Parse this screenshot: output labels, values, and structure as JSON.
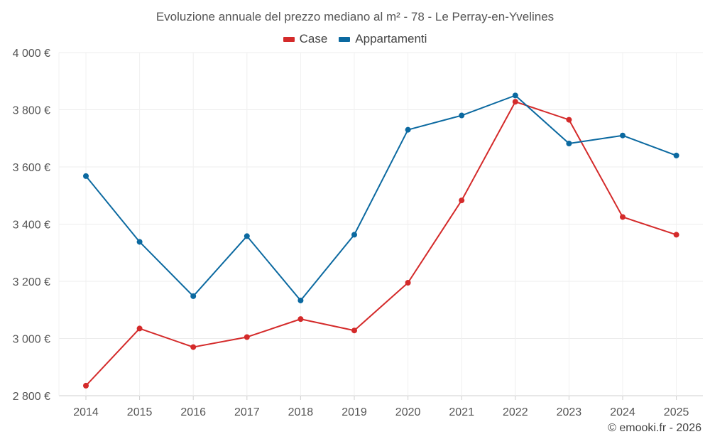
{
  "chart_data": {
    "type": "line",
    "title": "Evoluzione annuale del prezzo mediano al m² - 78 - Le Perray-en-Yvelines",
    "xlabel": "",
    "ylabel": "",
    "categories": [
      "2014",
      "2015",
      "2016",
      "2017",
      "2018",
      "2019",
      "2020",
      "2021",
      "2022",
      "2023",
      "2024",
      "2025"
    ],
    "ylim": [
      2800,
      4000
    ],
    "yticks": [
      2800,
      3000,
      3200,
      3400,
      3600,
      3800,
      4000
    ],
    "ytick_labels": [
      "2 800 €",
      "3 000 €",
      "3 200 €",
      "3 400 €",
      "3 600 €",
      "3 800 €",
      "4 000 €"
    ],
    "grid": true,
    "legend_position": "top-center",
    "series": [
      {
        "name": "Case",
        "color": "#d42a2a",
        "values": [
          2835,
          3035,
          2970,
          3005,
          3068,
          3028,
          3195,
          3483,
          3828,
          3765,
          3425,
          3363
        ]
      },
      {
        "name": "Appartamenti",
        "color": "#0b69a0",
        "values": [
          3568,
          3338,
          3148,
          3358,
          3133,
          3363,
          3730,
          3780,
          3850,
          3682,
          3710,
          3640
        ]
      }
    ]
  },
  "credit": "© emooki.fr - 2026"
}
